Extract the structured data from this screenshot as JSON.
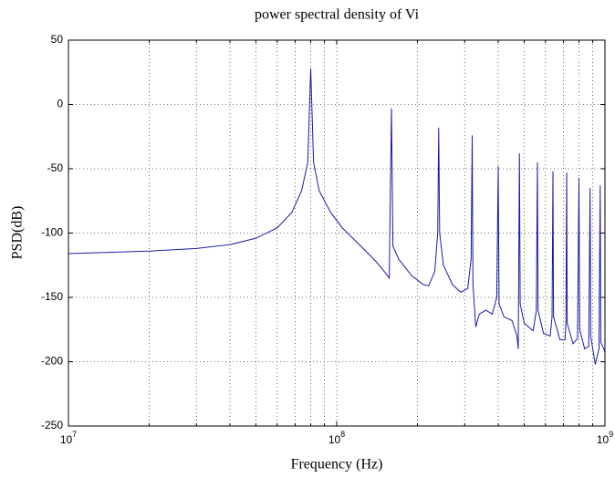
{
  "chart_data": {
    "type": "line",
    "title": "power spectral density of Vi",
    "xlabel": "Frequency (Hz)",
    "ylabel": "PSD(dB)",
    "xscale": "log",
    "grid": true,
    "xlim": [
      10000000.0,
      1000000000.0
    ],
    "ylim": [
      -250,
      50
    ],
    "xticks": [
      {
        "value": 10000000.0,
        "label": "10^7"
      },
      {
        "value": 100000000.0,
        "label": "10^8"
      },
      {
        "value": 1000000000.0,
        "label": "10^9"
      }
    ],
    "xminorticks": [
      20000000.0,
      30000000.0,
      40000000.0,
      50000000.0,
      60000000.0,
      70000000.0,
      80000000.0,
      90000000.0,
      200000000.0,
      300000000.0,
      400000000.0,
      500000000.0,
      600000000.0,
      700000000.0,
      800000000.0,
      900000000.0
    ],
    "yticks": [
      50,
      0,
      -50,
      -100,
      -150,
      -200,
      -250
    ],
    "series": [
      {
        "color": "#1a1aa6",
        "x": [
          10000000.0,
          20000000.0,
          30000000.0,
          40000000.0,
          50000000.0,
          60000000.0,
          68000000.0,
          74000000.0,
          78000000.0,
          80000000.0,
          82000000.0,
          86000000.0,
          95000000.0,
          105000000.0,
          120000000.0,
          140000000.0,
          152000000.0,
          157000000.0,
          160000000.0,
          162000000.0,
          170000000.0,
          190000000.0,
          210000000.0,
          220000000.0,
          232000000.0,
          238000000.0,
          240000000.0,
          242000000.0,
          250000000.0,
          270000000.0,
          290000000.0,
          308000000.0,
          317000000.0,
          320000000.0,
          322000000.0,
          330000000.0,
          340000000.0,
          360000000.0,
          380000000.0,
          395000000.0,
          400000000.0,
          403000000.0,
          420000000.0,
          450000000.0,
          470000000.0,
          475000000.0,
          480000000.0,
          483000000.0,
          500000000.0,
          540000000.0,
          555000000.0,
          560000000.0,
          563000000.0,
          590000000.0,
          625000000.0,
          635000000.0,
          640000000.0,
          643000000.0,
          680000000.0,
          710000000.0,
          715000000.0,
          720000000.0,
          723000000.0,
          760000000.0,
          790000000.0,
          800000000.0,
          805000000.0,
          840000000.0,
          870000000.0,
          880000000.0,
          885000000.0,
          920000000.0,
          950000000.0,
          960000000.0,
          965000000.0,
          1000000000.0
        ],
        "values": [
          -116,
          -114,
          -112,
          -109,
          -104,
          -96,
          -84,
          -67,
          -45,
          28,
          -45,
          -67,
          -84,
          -96,
          -108,
          -122,
          -131,
          -135,
          -3,
          -110,
          -120,
          -133,
          -140,
          -141,
          -130,
          -100,
          -18,
          -100,
          -125,
          -140,
          -146,
          -143,
          -120,
          -24,
          -140,
          -173,
          -163,
          -160,
          -163,
          -150,
          -48,
          -155,
          -165,
          -168,
          -180,
          -190,
          -38,
          -155,
          -170,
          -176,
          -160,
          -45,
          -160,
          -178,
          -180,
          -165,
          -52,
          -165,
          -183,
          -183,
          -170,
          -53,
          -170,
          -186,
          -182,
          -57,
          -175,
          -190,
          -188,
          -65,
          -180,
          -202,
          -190,
          -63,
          -185,
          -192
        ]
      }
    ]
  }
}
